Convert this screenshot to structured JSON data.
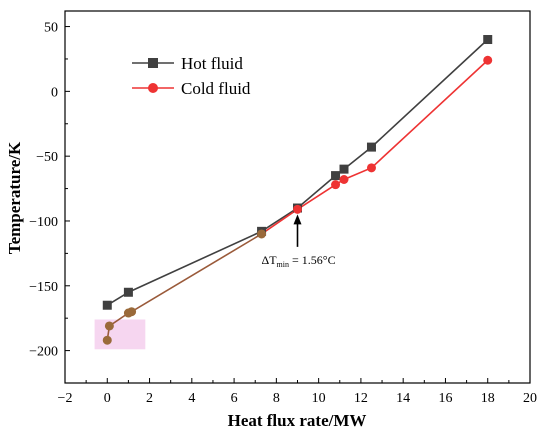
{
  "colors": {
    "hot": "#404040",
    "cold": "#ee3333",
    "overlap_line": "#9a5a3a",
    "overlap_marker": "#9a6a3a",
    "highlight": "#f2c4ea",
    "axis": "#000000"
  },
  "chart_data": {
    "type": "line",
    "xlabel": "Heat flux rate/MW",
    "ylabel": "Temperature/K",
    "xlim": [
      -2,
      20
    ],
    "ylim": [
      -225,
      62
    ],
    "xticks": [
      -2,
      0,
      2,
      4,
      6,
      8,
      10,
      12,
      14,
      16,
      18,
      20
    ],
    "yticks": [
      -200,
      -150,
      -100,
      -50,
      0,
      50
    ],
    "legend_position": "top-left",
    "series": [
      {
        "name": "Hot fluid",
        "marker": "square",
        "color": "#404040",
        "x": [
          0.0,
          1.0,
          7.3,
          9.0,
          10.8,
          11.2,
          12.5,
          18.0
        ],
        "y": [
          -165,
          -155,
          -108,
          -90,
          -65,
          -60,
          -43,
          40
        ]
      },
      {
        "name": "Cold fluid",
        "marker": "circle",
        "color": "#ee3333",
        "x": [
          0.0,
          0.1,
          1.0,
          1.15,
          7.3,
          9.0,
          10.8,
          11.2,
          12.5,
          18.0
        ],
        "y": [
          -192,
          -181,
          -171,
          -170,
          -110,
          -91,
          -72,
          -68,
          -59,
          24
        ]
      }
    ],
    "annotation": {
      "text_main": "ΔT",
      "text_sub": "min",
      "text_rest": " = 1.56°C",
      "x": 9.0,
      "y": -91,
      "label_x": 9.0,
      "label_y": -130
    }
  }
}
